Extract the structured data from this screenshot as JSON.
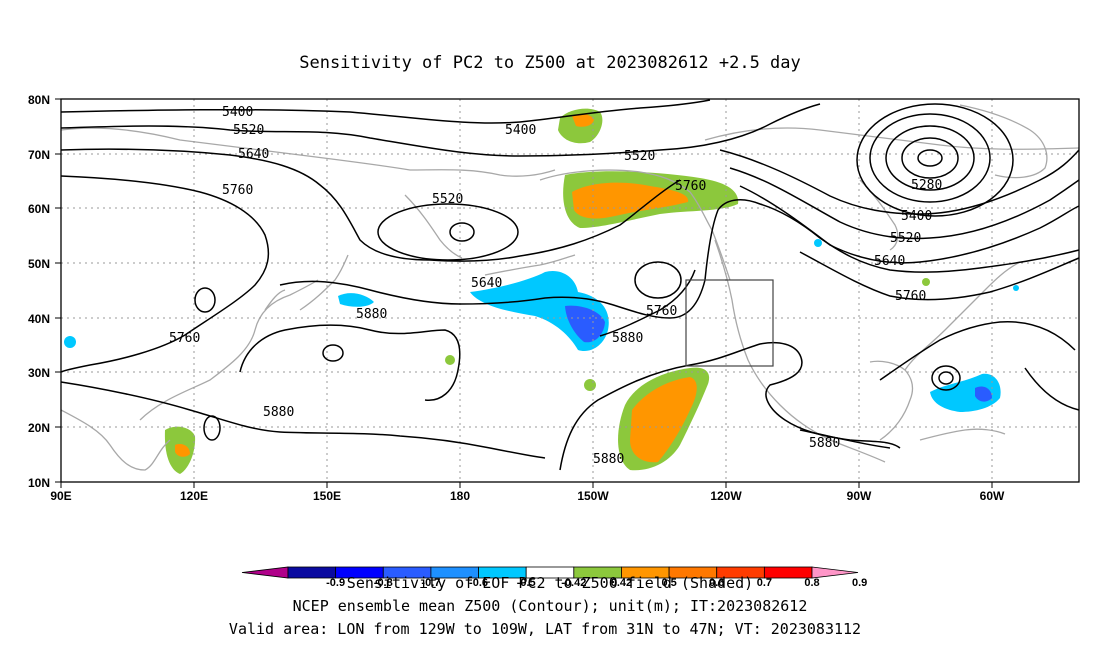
{
  "title": "Sensitivity of PC2 to Z500 at 2023082612 +2.5 day",
  "lat_labels": [
    "80N",
    "70N",
    "60N",
    "50N",
    "40N",
    "30N",
    "20N",
    "10N"
  ],
  "lon_labels": [
    "90E",
    "120E",
    "150E",
    "180",
    "150W",
    "120W",
    "90W",
    "60W"
  ],
  "contour_labels": [
    "5400",
    "5520",
    "5640",
    "5760",
    "5400",
    "5520",
    "5520",
    "5760",
    "5280",
    "5400",
    "5520",
    "5640",
    "5760",
    "5640",
    "5880",
    "5760",
    "5760",
    "5880",
    "5880",
    "5880",
    "5880"
  ],
  "colorbar": {
    "tick_labels": [
      "-0.9",
      "-0.8",
      "-0.7",
      "-0.6",
      "-0.5",
      "-0.42",
      "0.42",
      "0.5",
      "0.6",
      "0.7",
      "0.8",
      "0.9"
    ],
    "colors": [
      "#b0008a",
      "#0a0aa0",
      "#0000ff",
      "#2a5cff",
      "#1e90ff",
      "#00c8ff",
      "#ffffff",
      "#8cc83c",
      "#ff9600",
      "#ff7800",
      "#ff3c00",
      "#ff0000",
      "#ff96c8"
    ]
  },
  "footer": {
    "line1": "Sensitivity of EOF PC2 to Z500 field (Shaded)",
    "line2": "NCEP ensemble mean Z500 (Contour); unit(m); IT:2023082612",
    "line3": "Valid area: LON from 129W to 109W, LAT from 31N to 47N; VT: 2023083112"
  },
  "colors": {
    "contour": "#000000",
    "coast": "#a8a8a8",
    "grid": "#9a9a9a",
    "positive_light": "#8cc83c",
    "positive": "#ff9600",
    "negative_light": "#00c8ff",
    "negative": "#1e90ff",
    "negative_dark": "#2a5cff"
  }
}
